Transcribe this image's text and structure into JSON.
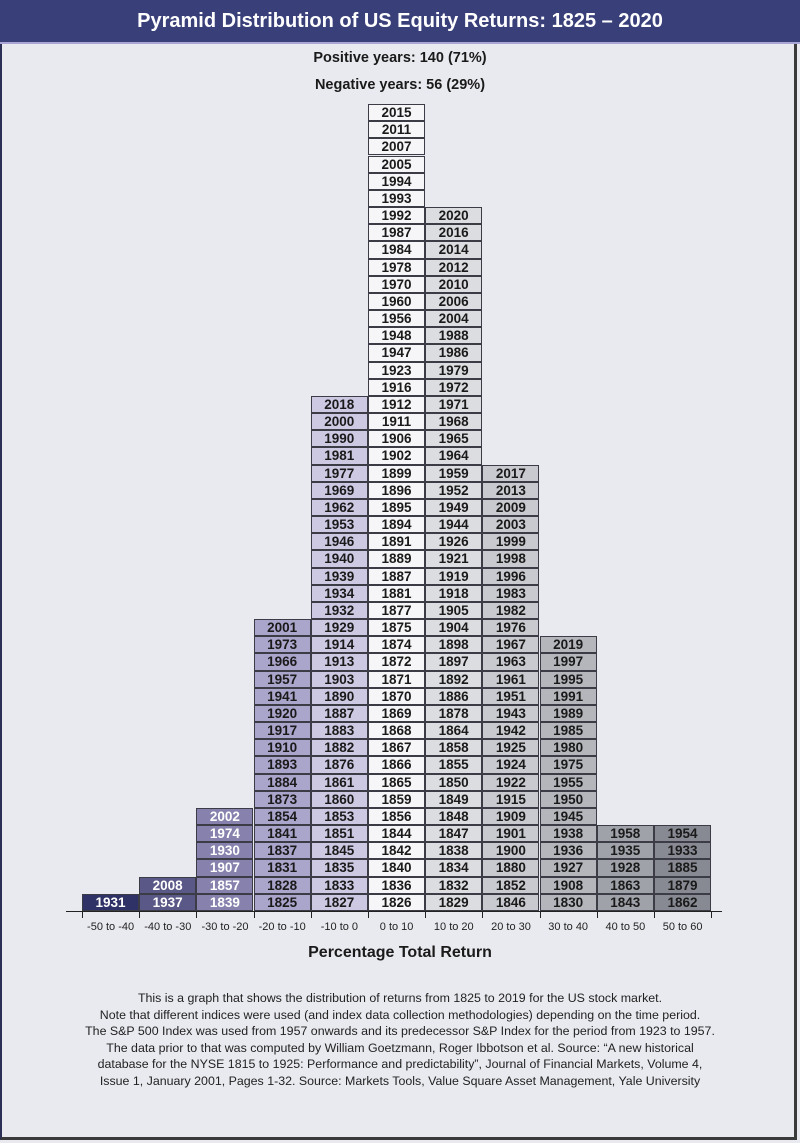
{
  "header": {
    "title": "Pyramid Distribution of US Equity Returns: 1825 – 2020"
  },
  "stats": {
    "positive": "Positive years: 140 (71%)",
    "negative": "Negative years: 56 (29%)"
  },
  "footer": {
    "note_lines": [
      "This is a graph that shows the distribution of returns from 1825 to 2019 for the US stock market.",
      "Note that different indices were used (and index data collection methodologies) depending on the time period.",
      "The S&P 500 Index was used from 1957 onwards and its predecessor S&P Index for the period from 1923 to 1957.",
      "The data prior to that was computed by William Goetzmann, Roger Ibbotson et al. Source: “A new historical",
      "database for the NYSE 1815 to 1925: Performance and predictability”, Journal of Financial Markets, Volume 4,",
      "Issue 1, January 2001, Pages 1-32. Source: Markets Tools, Value Square Asset Management, Yale University"
    ]
  },
  "chart_data": {
    "type": "bar",
    "title": "Pyramid Distribution of US Equity Returns: 1825 – 2020",
    "subtitle": [
      "Positive years: 140 (71%)",
      "Negative years: 56 (29%)"
    ],
    "xlabel": "Percentage Total Return",
    "ylabel": "",
    "grid": false,
    "categories": [
      "-50 to -40",
      "-40 to -30",
      "-30 to -20",
      "-20 to -10",
      "-10 to 0",
      "0 to 10",
      "10 to 20",
      "20 to 30",
      "30 to 40",
      "40 to 50",
      "50 to 60"
    ],
    "values": [
      1,
      2,
      6,
      17,
      30,
      47,
      41,
      26,
      16,
      5,
      5
    ],
    "colors": {
      "-50 to -40": {
        "bg": "#2f3266",
        "fg": "#ffffff"
      },
      "-40 to -30": {
        "bg": "#5a5887",
        "fg": "#ffffff"
      },
      "-30 to -20": {
        "bg": "#8682ad",
        "fg": "#ffffff"
      },
      "-20 to -10": {
        "bg": "#aaa5cb",
        "fg": "#1a1a1a"
      },
      "-10 to 0": {
        "bg": "#cdc9e3",
        "fg": "#1a1a1a"
      },
      "0 to 10": {
        "bg": "#f6f6f8",
        "fg": "#1a1a1a"
      },
      "10 to 20": {
        "bg": "#dcdde0",
        "fg": "#1a1a1a"
      },
      "20 to 30": {
        "bg": "#c9cacf",
        "fg": "#1a1a1a"
      },
      "30 to 40": {
        "bg": "#b4b6bc",
        "fg": "#1a1a1a"
      },
      "40 to 50": {
        "bg": "#9fa2a9",
        "fg": "#1a1a1a"
      },
      "50 to 60": {
        "bg": "#878a92",
        "fg": "#1a1a1a"
      }
    },
    "years_by_bin": {
      "-50 to -40": [
        "1931"
      ],
      "-40 to -30": [
        "2008",
        "1937"
      ],
      "-30 to -20": [
        "2002",
        "1974",
        "1930",
        "1907",
        "1857",
        "1839"
      ],
      "-20 to -10": [
        "2001",
        "1973",
        "1966",
        "1957",
        "1941",
        "1920",
        "1917",
        "1910",
        "1893",
        "1884",
        "1873",
        "1854",
        "1841",
        "1837",
        "1831",
        "1828",
        "1825"
      ],
      "-10 to 0": [
        "2018",
        "2000",
        "1990",
        "1981",
        "1977",
        "1969",
        "1962",
        "1953",
        "1946",
        "1940",
        "1939",
        "1934",
        "1932",
        "1929",
        "1914",
        "1913",
        "1903",
        "1890",
        "1887",
        "1883",
        "1882",
        "1876",
        "1861",
        "1860",
        "1853",
        "1851",
        "1845",
        "1835",
        "1833",
        "1827"
      ],
      "0 to 10": [
        "2015",
        "2011",
        "2007",
        "2005",
        "1994",
        "1993",
        "1992",
        "1987",
        "1984",
        "1978",
        "1970",
        "1960",
        "1956",
        "1948",
        "1947",
        "1923",
        "1916",
        "1912",
        "1911",
        "1906",
        "1902",
        "1899",
        "1896",
        "1895",
        "1894",
        "1891",
        "1889",
        "1887",
        "1881",
        "1877",
        "1875",
        "1874",
        "1872",
        "1871",
        "1870",
        "1869",
        "1868",
        "1867",
        "1866",
        "1865",
        "1859",
        "1856",
        "1844",
        "1842",
        "1840",
        "1836",
        "1826"
      ],
      "10 to 20": [
        "2020",
        "2016",
        "2014",
        "2012",
        "2010",
        "2006",
        "2004",
        "1988",
        "1986",
        "1979",
        "1972",
        "1971",
        "1968",
        "1965",
        "1964",
        "1959",
        "1952",
        "1949",
        "1944",
        "1926",
        "1921",
        "1919",
        "1918",
        "1905",
        "1904",
        "1898",
        "1897",
        "1892",
        "1886",
        "1878",
        "1864",
        "1858",
        "1855",
        "1850",
        "1849",
        "1848",
        "1847",
        "1838",
        "1834",
        "1832",
        "1829"
      ],
      "20 to 30": [
        "2017",
        "2013",
        "2009",
        "2003",
        "1999",
        "1998",
        "1996",
        "1983",
        "1982",
        "1976",
        "1967",
        "1963",
        "1961",
        "1951",
        "1943",
        "1942",
        "1925",
        "1924",
        "1922",
        "1915",
        "1909",
        "1901",
        "1900",
        "1880",
        "1852",
        "1846"
      ],
      "30 to 40": [
        "2019",
        "1997",
        "1995",
        "1991",
        "1989",
        "1985",
        "1980",
        "1975",
        "1955",
        "1950",
        "1945",
        "1938",
        "1936",
        "1927",
        "1908",
        "1830"
      ],
      "40 to 50": [
        "1958",
        "1935",
        "1928",
        "1863",
        "1843"
      ],
      "50 to 60": [
        "1954",
        "1933",
        "1885",
        "1879",
        "1862"
      ]
    },
    "ylim": [
      0,
      47
    ],
    "legend": null
  }
}
